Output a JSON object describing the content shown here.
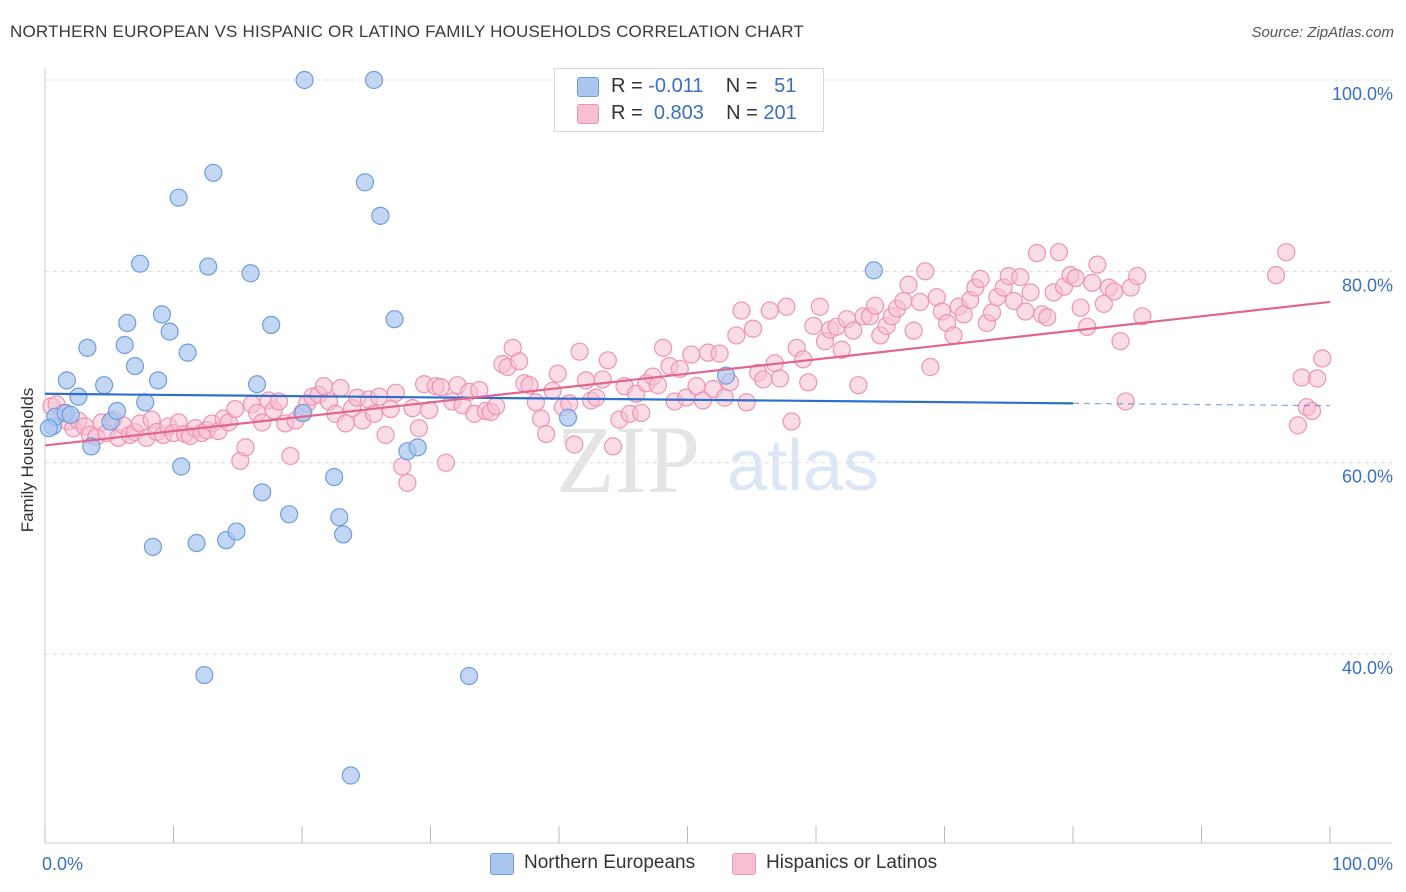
{
  "title": "NORTHERN EUROPEAN VS HISPANIC OR LATINO FAMILY HOUSEHOLDS CORRELATION CHART",
  "source": "Source: ZipAtlas.com",
  "watermark": {
    "zip": "ZIP",
    "atlas": "atlas"
  },
  "legend": {
    "rows": [
      {
        "r_label": "R =",
        "r_value": "-0.011",
        "n_label": "N =",
        "n_value": "51"
      },
      {
        "r_label": "R =",
        "r_value": "0.803",
        "n_label": "N =",
        "n_value": "201"
      }
    ]
  },
  "bottom_legend": {
    "series_a": "Northern Europeans",
    "series_b": "Hispanics or Latinos"
  },
  "colors": {
    "blue_fill": "#a9c6ef",
    "blue_stroke": "#6f9ddd",
    "blue_line": "#2e6fce",
    "pink_fill": "#f6bfd2",
    "pink_stroke": "#ee93b3",
    "pink_line": "#e0668f",
    "axis_label": "#3b6fc4",
    "grid": "#dedede"
  },
  "chart_data": {
    "type": "scatter",
    "xlabel": "",
    "ylabel": "Family Households",
    "xlim": [
      0,
      100
    ],
    "ylim": [
      20,
      102
    ],
    "x_tick_labels": [
      {
        "v": 0,
        "label": "0.0%"
      },
      {
        "v": 100,
        "label": "100.0%"
      }
    ],
    "y_tick_labels": [
      {
        "v": 40,
        "label": "40.0%"
      },
      {
        "v": 60,
        "label": "60.0%"
      },
      {
        "v": 80,
        "label": "80.0%"
      },
      {
        "v": 100,
        "label": "100.0%"
      }
    ],
    "grid": true,
    "series": [
      {
        "name": "Northern Europeans",
        "trend": {
          "x0": 0,
          "y0": 67.2,
          "x1": 80,
          "y1": 66.2,
          "dash_to": 100
        },
        "points": [
          [
            0.6,
            63.8
          ],
          [
            0.8,
            64.8
          ],
          [
            1.6,
            65.2
          ],
          [
            1.7,
            68.6
          ],
          [
            2.6,
            66.9
          ],
          [
            3.3,
            72
          ],
          [
            3.6,
            61.7
          ],
          [
            4.6,
            68.1
          ],
          [
            5.1,
            64.3
          ],
          [
            5.6,
            65.4
          ],
          [
            6.2,
            72.3
          ],
          [
            6.4,
            74.6
          ],
          [
            7.0,
            70.1
          ],
          [
            7.4,
            80.8
          ],
          [
            7.8,
            66.3
          ],
          [
            8.4,
            51.2
          ],
          [
            8.8,
            68.6
          ],
          [
            9.1,
            75.5
          ],
          [
            9.7,
            73.7
          ],
          [
            10.4,
            87.7
          ],
          [
            10.6,
            59.6
          ],
          [
            11.1,
            71.5
          ],
          [
            11.8,
            51.6
          ],
          [
            12.4,
            37.8
          ],
          [
            12.7,
            80.5
          ],
          [
            13.1,
            90.3
          ],
          [
            14.1,
            51.9
          ],
          [
            14.9,
            52.8
          ],
          [
            16.0,
            79.8
          ],
          [
            16.5,
            68.2
          ],
          [
            16.9,
            56.9
          ],
          [
            17.6,
            74.4
          ],
          [
            19.0,
            54.6
          ],
          [
            20.1,
            65.2
          ],
          [
            20.2,
            100
          ],
          [
            22.5,
            58.5
          ],
          [
            22.9,
            54.3
          ],
          [
            23.2,
            52.5
          ],
          [
            23.8,
            27.3
          ],
          [
            24.9,
            89.3
          ],
          [
            25.6,
            100
          ],
          [
            26.1,
            85.8
          ],
          [
            27.2,
            75
          ],
          [
            28.2,
            61.2
          ],
          [
            29.0,
            61.6
          ],
          [
            33.0,
            37.7
          ],
          [
            40.7,
            64.7
          ],
          [
            53.0,
            69.1
          ],
          [
            64.5,
            80.1
          ],
          [
            0.3,
            63.6
          ],
          [
            2.0,
            65.0
          ]
        ]
      },
      {
        "name": "Hispanics or Latinos",
        "trend": {
          "x0": 0,
          "y0": 61.8,
          "x1": 100,
          "y1": 76.8
        },
        "points": [
          [
            0.5,
            65.9
          ],
          [
            0.9,
            66.1
          ],
          [
            1.4,
            65.2
          ],
          [
            1.8,
            64.3
          ],
          [
            2.2,
            63.6
          ],
          [
            2.6,
            64.4
          ],
          [
            3.1,
            63.8
          ],
          [
            3.5,
            62.9
          ],
          [
            4.0,
            62.7
          ],
          [
            4.4,
            64.2
          ],
          [
            4.8,
            63.1
          ],
          [
            5.3,
            64.5
          ],
          [
            5.7,
            62.6
          ],
          [
            6.1,
            63.9
          ],
          [
            6.6,
            62.9
          ],
          [
            7.0,
            63.2
          ],
          [
            7.4,
            64.1
          ],
          [
            7.9,
            62.6
          ],
          [
            8.3,
            64.5
          ],
          [
            8.7,
            63.2
          ],
          [
            9.2,
            62.9
          ],
          [
            9.6,
            63.8
          ],
          [
            10.0,
            63.1
          ],
          [
            10.4,
            64.2
          ],
          [
            10.9,
            63.0
          ],
          [
            11.3,
            62.8
          ],
          [
            11.7,
            63.6
          ],
          [
            12.2,
            63.1
          ],
          [
            12.6,
            63.4
          ],
          [
            13.0,
            64.1
          ],
          [
            13.5,
            63.3
          ],
          [
            13.9,
            64.6
          ],
          [
            14.3,
            64.2
          ],
          [
            14.8,
            65.6
          ],
          [
            15.2,
            60.2
          ],
          [
            15.6,
            61.6
          ],
          [
            16.1,
            66.1
          ],
          [
            16.5,
            65.2
          ],
          [
            16.9,
            64.2
          ],
          [
            17.4,
            66.5
          ],
          [
            17.8,
            65.5
          ],
          [
            18.2,
            66.4
          ],
          [
            18.7,
            64.1
          ],
          [
            19.1,
            60.7
          ],
          [
            19.5,
            64.4
          ],
          [
            20.0,
            65.2
          ],
          [
            20.4,
            66.2
          ],
          [
            20.8,
            66.9
          ],
          [
            21.3,
            67.1
          ],
          [
            21.7,
            68.0
          ],
          [
            22.1,
            66.4
          ],
          [
            22.6,
            65.1
          ],
          [
            23.0,
            67.8
          ],
          [
            23.4,
            64.1
          ],
          [
            23.9,
            65.7
          ],
          [
            24.3,
            66.8
          ],
          [
            24.7,
            64.4
          ],
          [
            25.2,
            66.6
          ],
          [
            25.6,
            65.1
          ],
          [
            26.0,
            66.9
          ],
          [
            26.5,
            62.9
          ],
          [
            26.9,
            65.6
          ],
          [
            27.3,
            67.3
          ],
          [
            27.8,
            59.6
          ],
          [
            28.2,
            57.9
          ],
          [
            28.6,
            65.7
          ],
          [
            29.1,
            63.6
          ],
          [
            29.5,
            68.2
          ],
          [
            29.9,
            65.5
          ],
          [
            30.4,
            68.0
          ],
          [
            30.8,
            67.9
          ],
          [
            31.2,
            60.0
          ],
          [
            31.7,
            66.4
          ],
          [
            32.1,
            68.1
          ],
          [
            32.5,
            66.0
          ],
          [
            33.0,
            67.4
          ],
          [
            33.4,
            65.1
          ],
          [
            33.8,
            67.6
          ],
          [
            34.3,
            65.4
          ],
          [
            34.7,
            65.3
          ],
          [
            35.1,
            65.9
          ],
          [
            35.6,
            70.3
          ],
          [
            36.0,
            70.0
          ],
          [
            36.4,
            72.0
          ],
          [
            36.9,
            70.6
          ],
          [
            37.3,
            68.3
          ],
          [
            37.7,
            68.1
          ],
          [
            38.2,
            66.3
          ],
          [
            38.6,
            64.6
          ],
          [
            39.0,
            63.0
          ],
          [
            39.5,
            67.5
          ],
          [
            39.9,
            69.3
          ],
          [
            40.3,
            65.8
          ],
          [
            40.8,
            66.2
          ],
          [
            41.2,
            61.9
          ],
          [
            41.6,
            71.6
          ],
          [
            42.1,
            68.6
          ],
          [
            42.5,
            66.5
          ],
          [
            42.9,
            66.8
          ],
          [
            43.4,
            68.7
          ],
          [
            43.8,
            70.7
          ],
          [
            44.2,
            61.7
          ],
          [
            44.7,
            64.5
          ],
          [
            45.1,
            68.0
          ],
          [
            45.5,
            65.1
          ],
          [
            46.0,
            67.2
          ],
          [
            46.4,
            65.2
          ],
          [
            46.8,
            68.3
          ],
          [
            47.3,
            69.0
          ],
          [
            47.7,
            68.1
          ],
          [
            48.1,
            72.0
          ],
          [
            48.6,
            70.1
          ],
          [
            49.0,
            66.4
          ],
          [
            49.4,
            69.8
          ],
          [
            49.9,
            66.8
          ],
          [
            50.3,
            71.3
          ],
          [
            50.7,
            68.0
          ],
          [
            51.2,
            66.5
          ],
          [
            51.6,
            71.5
          ],
          [
            52.0,
            67.7
          ],
          [
            52.5,
            71.4
          ],
          [
            52.9,
            66.8
          ],
          [
            53.3,
            68.4
          ],
          [
            53.8,
            73.3
          ],
          [
            54.2,
            75.9
          ],
          [
            54.6,
            66.3
          ],
          [
            55.1,
            74.0
          ],
          [
            55.5,
            69.4
          ],
          [
            55.9,
            68.7
          ],
          [
            56.4,
            75.9
          ],
          [
            56.8,
            70.4
          ],
          [
            57.2,
            68.8
          ],
          [
            57.7,
            76.3
          ],
          [
            58.1,
            64.3
          ],
          [
            58.5,
            72.0
          ],
          [
            59.0,
            70.8
          ],
          [
            59.4,
            68.4
          ],
          [
            59.8,
            74.3
          ],
          [
            60.3,
            76.3
          ],
          [
            60.7,
            72.7
          ],
          [
            61.1,
            73.9
          ],
          [
            61.6,
            74.2
          ],
          [
            62.0,
            71.8
          ],
          [
            62.4,
            75.0
          ],
          [
            62.9,
            73.8
          ],
          [
            63.3,
            68.1
          ],
          [
            63.7,
            75.3
          ],
          [
            64.2,
            75.3
          ],
          [
            64.6,
            76.4
          ],
          [
            65.0,
            73.3
          ],
          [
            65.5,
            74.3
          ],
          [
            65.9,
            75.3
          ],
          [
            66.3,
            76.1
          ],
          [
            66.8,
            76.9
          ],
          [
            67.2,
            78.6
          ],
          [
            67.6,
            73.8
          ],
          [
            68.1,
            76.8
          ],
          [
            68.5,
            80.0
          ],
          [
            68.9,
            70.0
          ],
          [
            69.4,
            77.3
          ],
          [
            69.8,
            75.8
          ],
          [
            70.2,
            74.6
          ],
          [
            70.7,
            73.3
          ],
          [
            71.1,
            76.3
          ],
          [
            71.5,
            75.5
          ],
          [
            72.0,
            77.0
          ],
          [
            72.4,
            78.3
          ],
          [
            72.8,
            79.2
          ],
          [
            73.3,
            74.6
          ],
          [
            73.7,
            75.7
          ],
          [
            74.1,
            77.3
          ],
          [
            74.6,
            78.3
          ],
          [
            75.0,
            79.5
          ],
          [
            75.4,
            76.9
          ],
          [
            75.9,
            79.4
          ],
          [
            76.3,
            75.8
          ],
          [
            76.7,
            77.8
          ],
          [
            77.2,
            81.9
          ],
          [
            77.6,
            75.5
          ],
          [
            78.0,
            75.2
          ],
          [
            78.5,
            77.8
          ],
          [
            78.9,
            82.0
          ],
          [
            79.3,
            78.4
          ],
          [
            79.8,
            79.6
          ],
          [
            80.2,
            79.3
          ],
          [
            80.6,
            76.2
          ],
          [
            81.1,
            74.2
          ],
          [
            81.5,
            78.8
          ],
          [
            81.9,
            80.7
          ],
          [
            82.4,
            76.6
          ],
          [
            82.8,
            78.3
          ],
          [
            83.2,
            77.9
          ],
          [
            83.7,
            72.7
          ],
          [
            84.1,
            66.4
          ],
          [
            84.5,
            78.3
          ],
          [
            85.0,
            79.5
          ],
          [
            85.4,
            75.3
          ],
          [
            97.5,
            63.9
          ],
          [
            97.8,
            68.9
          ],
          [
            98.2,
            65.8
          ],
          [
            98.6,
            65.4
          ],
          [
            99.0,
            68.8
          ],
          [
            99.4,
            70.9
          ],
          [
            95.8,
            79.6
          ],
          [
            96.6,
            82.0
          ]
        ]
      }
    ]
  }
}
